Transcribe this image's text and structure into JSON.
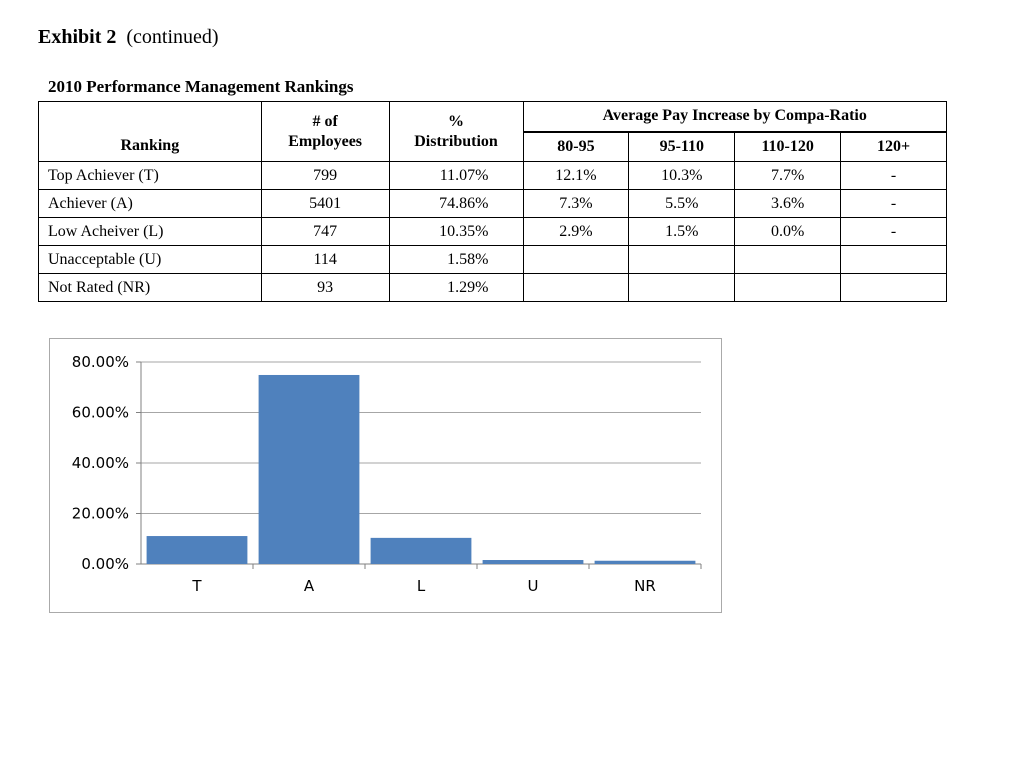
{
  "exhibit": {
    "label": "Exhibit 2",
    "note": "(continued)"
  },
  "table": {
    "title": "2010 Performance Management Rankings",
    "headers": {
      "ranking": "Ranking",
      "employees": [
        "# of",
        "Employees"
      ],
      "distribution": [
        "%",
        "Distribution"
      ],
      "pay_group": "Average Pay Increase by Compa-Ratio",
      "compa_ratio_bands": [
        "80-95",
        "95-110",
        "110-120",
        "120+"
      ]
    },
    "rows": [
      {
        "ranking": "Top Achiever (T)",
        "employees": "799",
        "distribution": "11.07%",
        "pay": [
          "12.1%",
          "10.3%",
          "7.7%",
          "-"
        ]
      },
      {
        "ranking": "Achiever (A)",
        "employees": "5401",
        "distribution": "74.86%",
        "pay": [
          "7.3%",
          "5.5%",
          "3.6%",
          "-"
        ]
      },
      {
        "ranking": "Low Acheiver (L)",
        "employees": "747",
        "distribution": "10.35%",
        "pay": [
          "2.9%",
          "1.5%",
          "0.0%",
          "-"
        ]
      },
      {
        "ranking": "Unacceptable (U)",
        "employees": "114",
        "distribution": "1.58%",
        "pay": [
          "",
          "",
          "",
          ""
        ]
      },
      {
        "ranking": "Not Rated (NR)",
        "employees": "93",
        "distribution": "1.29%",
        "pay": [
          "",
          "",
          "",
          ""
        ]
      }
    ]
  },
  "chart_data": {
    "type": "bar",
    "categories": [
      "T",
      "A",
      "L",
      "U",
      "NR"
    ],
    "values": [
      11.07,
      74.86,
      10.35,
      1.58,
      1.29
    ],
    "title": "",
    "xlabel": "",
    "ylabel": "",
    "ylim": [
      0,
      80
    ],
    "yticks": [
      "0.00%",
      "20.00%",
      "40.00%",
      "60.00%",
      "80.00%"
    ],
    "grid": true,
    "legend": "none",
    "bar_color": "#4f81bd",
    "grid_color": "#a6a6a6"
  }
}
